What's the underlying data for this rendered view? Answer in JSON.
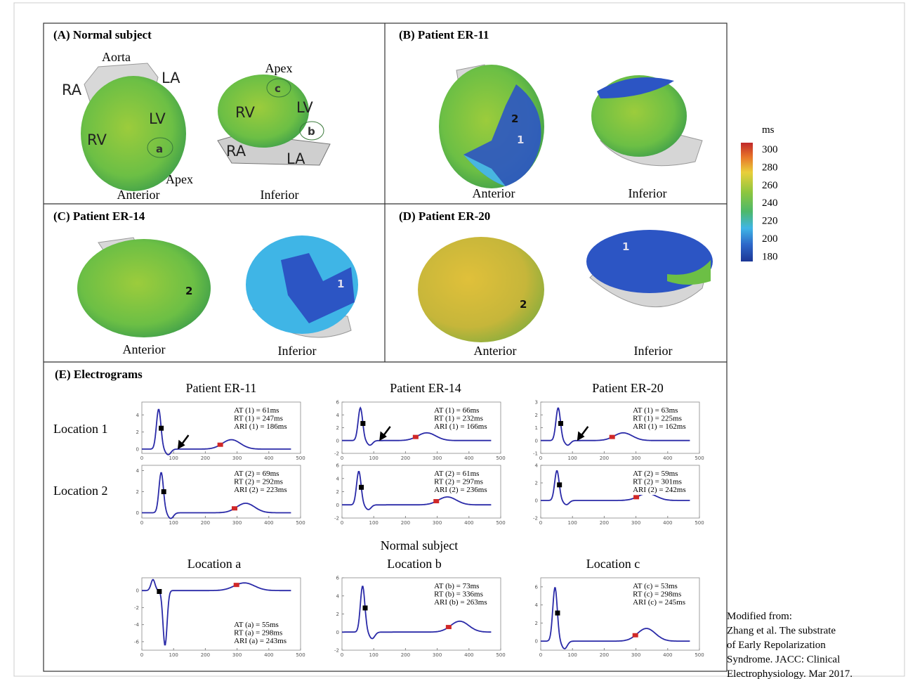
{
  "panels": [
    {
      "title": "(A) Normal subject",
      "labels": [
        "Aorta",
        "RA",
        "LA",
        "LV",
        "RV",
        "a",
        "Apex",
        "Anterior",
        "Apex",
        "c",
        "RV",
        "LV",
        "b",
        "RA",
        "LA",
        "Inferior"
      ]
    },
    {
      "title": "(B) Patient ER-11",
      "labels": [
        "2",
        "1",
        "Anterior",
        "Inferior"
      ]
    },
    {
      "title": "(C) Patient ER-14",
      "labels": [
        "2",
        "1",
        "Anterior",
        "Inferior"
      ]
    },
    {
      "title": "(D) Patient ER-20",
      "labels": [
        "2",
        "1",
        "Anterior",
        "Inferior"
      ]
    }
  ],
  "colorbar": {
    "unit": "ms",
    "ticks": [
      300,
      280,
      260,
      240,
      220,
      200,
      180
    ]
  },
  "electrograms": {
    "title": "(E) Electrograms",
    "columns": [
      "Patient ER-11",
      "Patient ER-14",
      "Patient ER-20"
    ],
    "rows": [
      "Location 1",
      "Location 2"
    ],
    "plots": [
      {
        "xlim": [
          0,
          500
        ],
        "xticks": [
          0,
          100,
          200,
          300,
          400,
          500
        ],
        "ylim": [
          -0.5,
          5.5
        ],
        "yticks": [
          0,
          2,
          4
        ],
        "annotation": [
          "AT (1) = 61ms",
          "RT (1) = 247ms",
          "ARI (1) = 186ms"
        ]
      },
      {
        "xlim": [
          0,
          500
        ],
        "xticks": [
          0,
          100,
          200,
          300,
          400,
          500
        ],
        "ylim": [
          -2,
          6
        ],
        "yticks": [
          -2,
          0,
          2,
          4,
          6
        ],
        "annotation": [
          "AT (1) = 66ms",
          "RT (1) = 232ms",
          "ARI (1) = 166ms"
        ]
      },
      {
        "xlim": [
          0,
          500
        ],
        "xticks": [
          0,
          100,
          200,
          300,
          400,
          500
        ],
        "ylim": [
          -1,
          3
        ],
        "yticks": [
          -1,
          0,
          1,
          2,
          3
        ],
        "annotation": [
          "AT (1) = 63ms",
          "RT (1) = 225ms",
          "ARI (1) = 162ms"
        ]
      },
      {
        "xlim": [
          0,
          500
        ],
        "xticks": [
          0,
          100,
          200,
          300,
          400,
          500
        ],
        "ylim": [
          -0.5,
          4.5
        ],
        "yticks": [
          0,
          2,
          4
        ],
        "annotation": [
          "AT (2) = 69ms",
          "RT (2) = 292ms",
          "ARI (2) = 223ms"
        ]
      },
      {
        "xlim": [
          0,
          500
        ],
        "xticks": [
          0,
          100,
          200,
          300,
          400,
          500
        ],
        "ylim": [
          -2,
          6
        ],
        "yticks": [
          -2,
          0,
          2,
          4,
          6
        ],
        "annotation": [
          "AT (2) = 61ms",
          "RT (2) = 297ms",
          "ARI (2) = 236ms"
        ]
      },
      {
        "xlim": [
          0,
          500
        ],
        "xticks": [
          0,
          100,
          200,
          300,
          400,
          500
        ],
        "ylim": [
          -2,
          4
        ],
        "yticks": [
          -2,
          0,
          2,
          4
        ],
        "annotation": [
          "AT (2) = 59ms",
          "RT (2) = 301ms",
          "ARI (2) = 242ms"
        ]
      }
    ],
    "normal": {
      "title": "Normal subject",
      "plots": [
        {
          "title": "Location a",
          "xlim": [
            0,
            500
          ],
          "xticks": [
            0,
            100,
            200,
            300,
            400,
            500
          ],
          "ylim": [
            -7,
            1.5
          ],
          "yticks": [
            -6,
            -4,
            -2,
            0
          ],
          "annotation": [
            "AT (a) = 55ms",
            "RT (a) = 298ms",
            "ARI (a) = 243ms"
          ]
        },
        {
          "title": "Location b",
          "xlim": [
            0,
            500
          ],
          "xticks": [
            0,
            100,
            200,
            300,
            400,
            500
          ],
          "ylim": [
            -2,
            6
          ],
          "yticks": [
            -2,
            0,
            2,
            4,
            6
          ],
          "annotation": [
            "AT (b) = 73ms",
            "RT (b) = 336ms",
            "ARI (b) = 263ms"
          ]
        },
        {
          "title": "Location c",
          "xlim": [
            0,
            500
          ],
          "xticks": [
            0,
            100,
            200,
            300,
            400,
            500
          ],
          "ylim": [
            -1,
            7
          ],
          "yticks": [
            0,
            2,
            4,
            6
          ],
          "annotation": [
            "AT (c) = 53ms",
            "RT (c) = 298ms",
            "ARI (c) = 245ms"
          ]
        }
      ]
    }
  },
  "citation": [
    "Modified from:",
    "Zhang et al. The substrate",
    "of Early Repolarization",
    "Syndrome. JACC: Clinical",
    "Electrophysiology. Mar 2017."
  ]
}
